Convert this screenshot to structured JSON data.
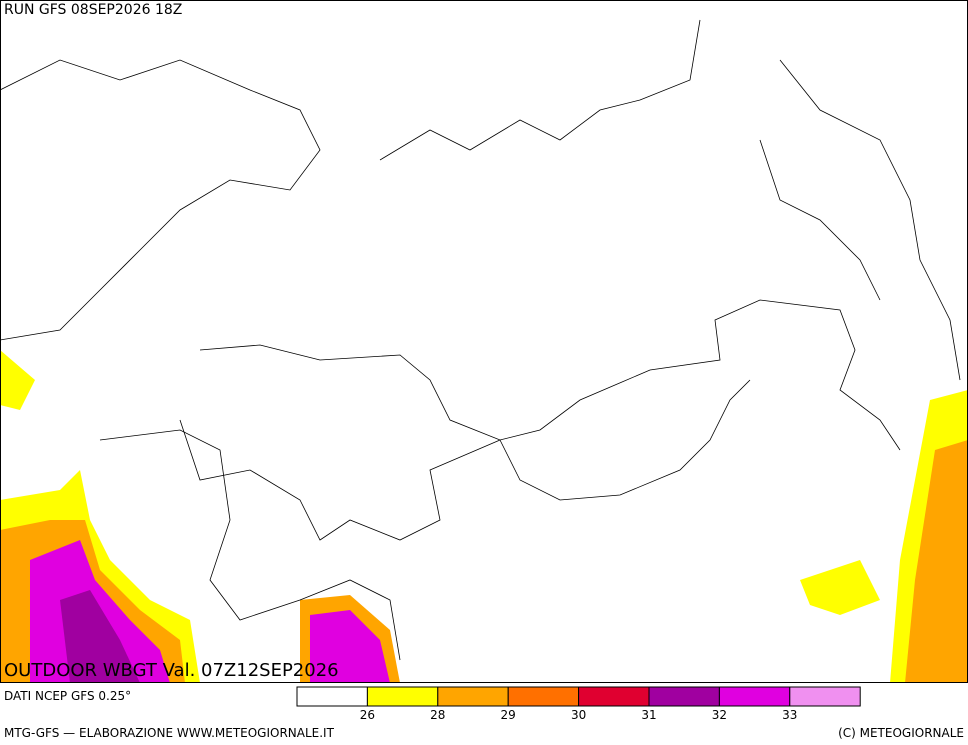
{
  "header": {
    "run": "RUN GFS 08SEP2026 18Z"
  },
  "map": {
    "title": "OUTDOOR WBGT Val. 07Z12SEP2026"
  },
  "legend": {
    "source": "DATI NCEP GFS 0.25°",
    "colors": [
      "#ffffff",
      "#ffff00",
      "#ffa500",
      "#ff7000",
      "#e00030",
      "#a000a0",
      "#e000e0",
      "#f090f0"
    ],
    "ticks": [
      26,
      28,
      29,
      30,
      31,
      32,
      33
    ]
  },
  "footer": {
    "left": "MTG-GFS — ELABORAZIONE WWW.METEOGIORNALE.IT",
    "right": "(C) METEOGIORNALE"
  }
}
